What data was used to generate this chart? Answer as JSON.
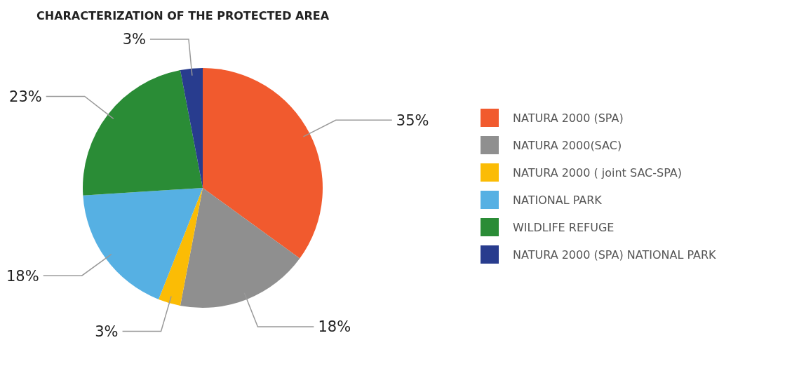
{
  "chart_data": {
    "type": "pie",
    "title": "CHARACTERIZATION OF THE PROTECTED AREA",
    "categories": [
      "NATURA 2000 (SPA)",
      "NATURA 2000(SAC)",
      "NATURA 2000 ( joint SAC-SPA)",
      "NATIONAL PARK",
      "WILDLIFE REFUGE",
      "NATURA 2000 (SPA)  NATIONAL PARK"
    ],
    "values": [
      35,
      18,
      3,
      18,
      23,
      3
    ],
    "value_labels": [
      "35%",
      "18%",
      "3%",
      "18%",
      "23%",
      "3%"
    ],
    "colors": [
      "#f15a2e",
      "#8f8f8f",
      "#fbbc05",
      "#56b0e3",
      "#2a8c36",
      "#283c8e"
    ],
    "legend": "right"
  }
}
